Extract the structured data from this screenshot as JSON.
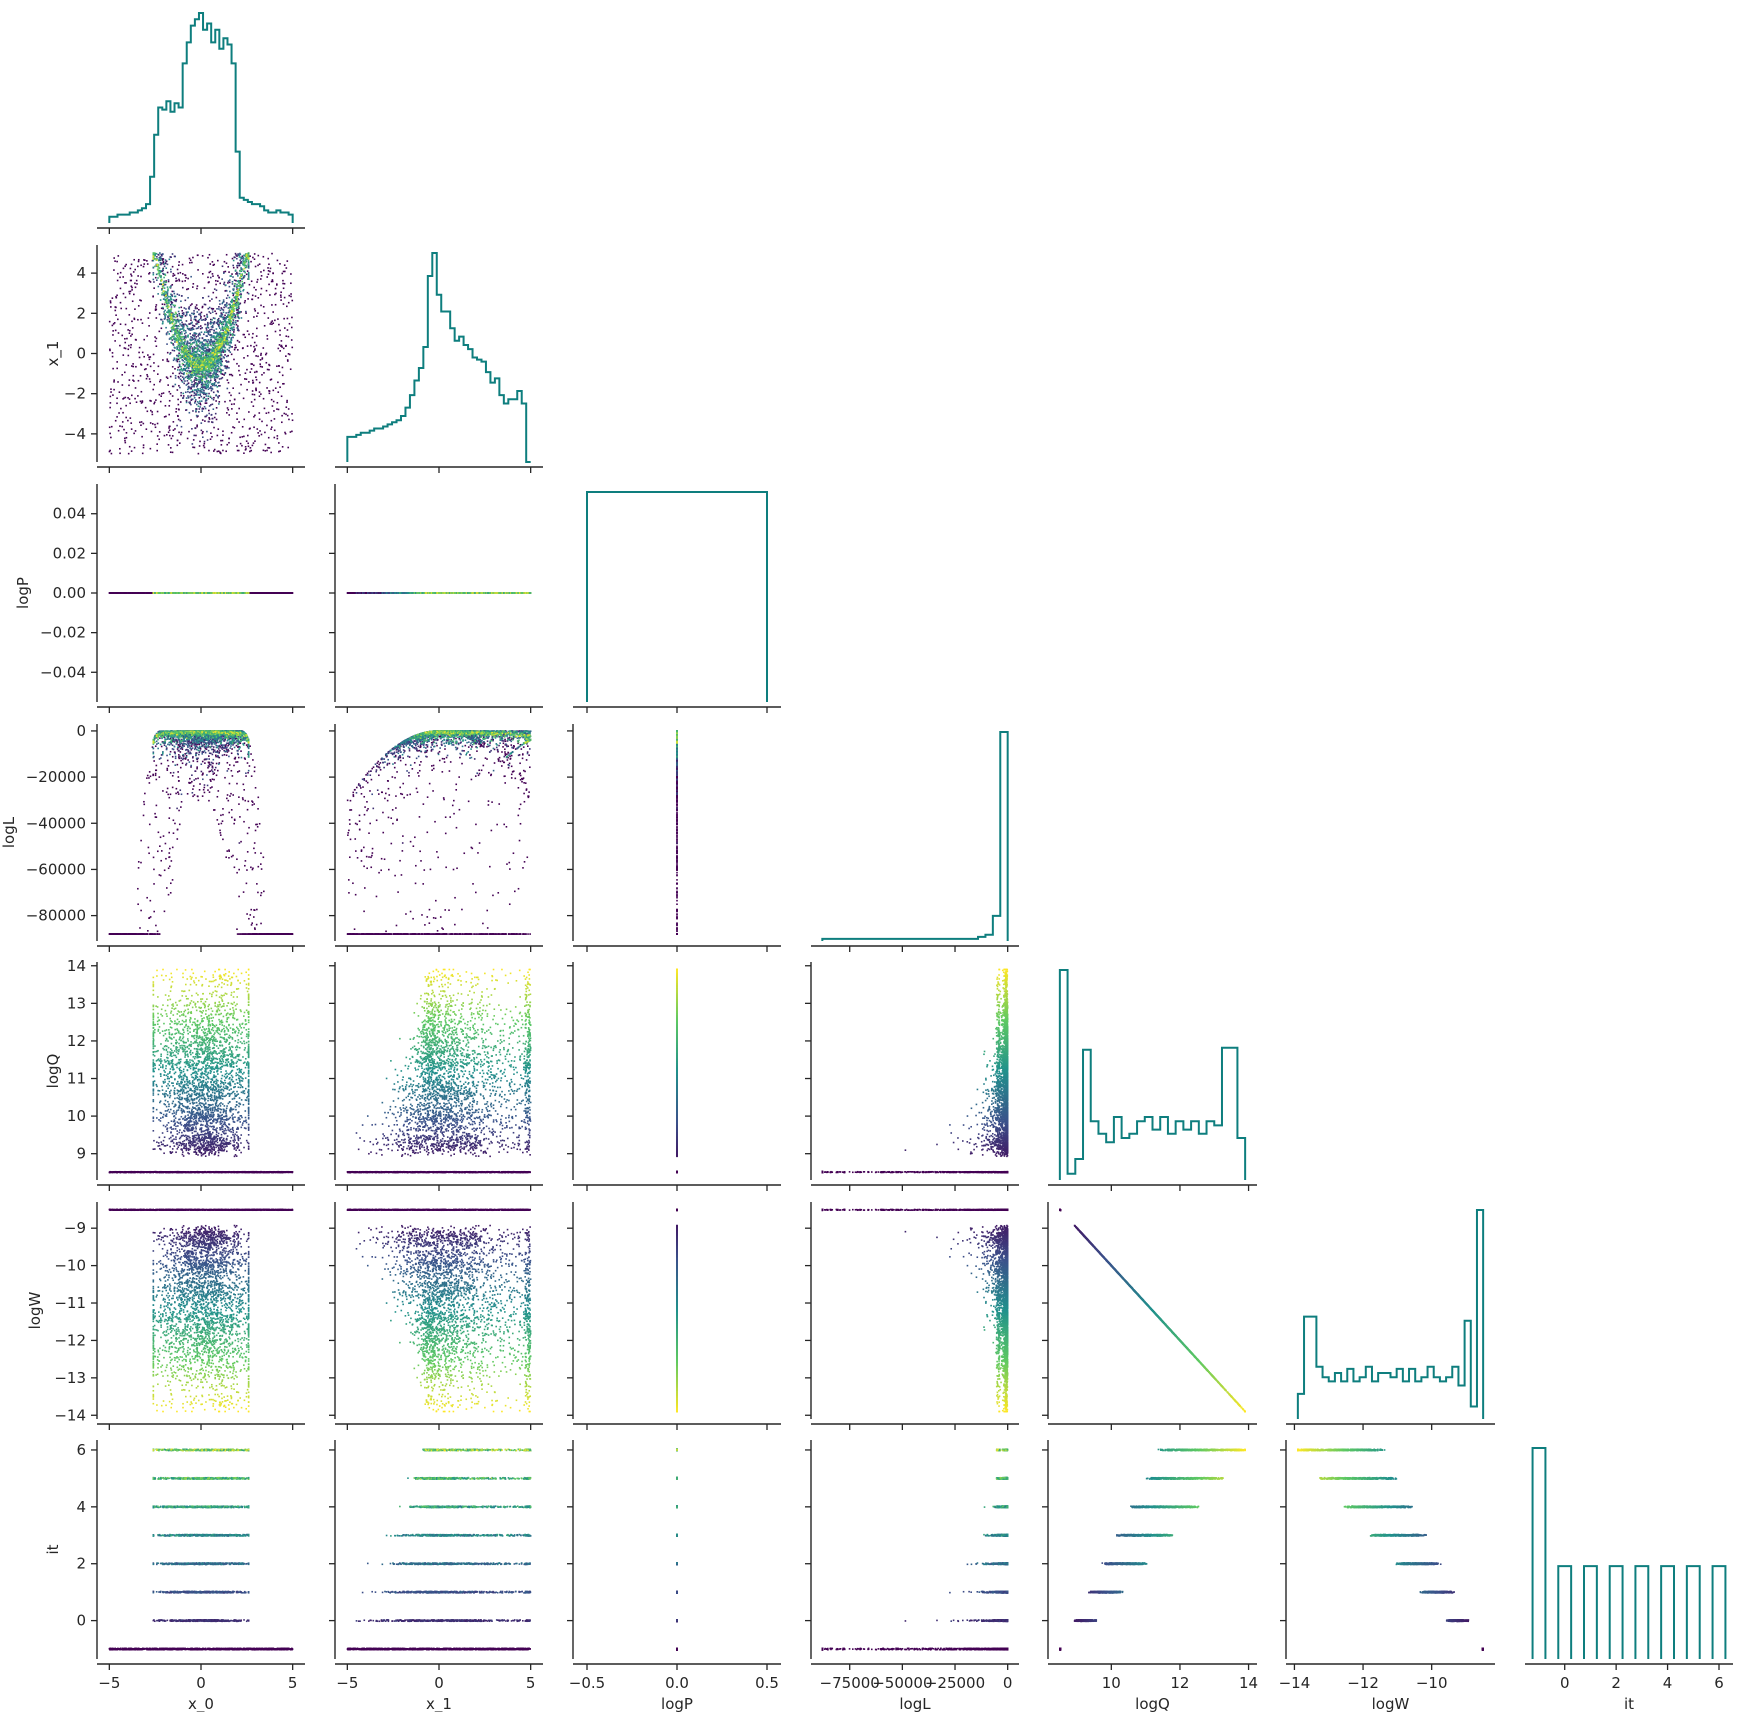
{
  "chart_data": {
    "type": "corner",
    "variables": [
      "x_0",
      "x_1",
      "logP",
      "logL",
      "logQ",
      "logW",
      "it"
    ],
    "xlabels": [
      "x_0",
      "x_1",
      "logP",
      "logL",
      "logQ",
      "logW",
      "it"
    ],
    "ylabels": [
      "",
      "x_1",
      "logP",
      "logL",
      "logQ",
      "logW",
      "it"
    ],
    "colormap": [
      "#440154",
      "#3b528b",
      "#21918c",
      "#5ec962",
      "#fde725"
    ],
    "line_color": "#0e7e7e",
    "axes": {
      "x_0": {
        "lim": [
          -5.4,
          5.4
        ],
        "ticks": [
          -5,
          0,
          5
        ],
        "tick_labels": [
          "−5",
          "0",
          "5"
        ]
      },
      "x_1": {
        "lim": [
          -5.4,
          5.4
        ],
        "ticks": [
          -4,
          -2,
          0,
          2,
          4
        ],
        "tick_labels": [
          "−4",
          "−2",
          "0",
          "2",
          "4"
        ],
        "xticks": [
          -5,
          0,
          5
        ],
        "xtick_labels": [
          "−5",
          "0",
          "5"
        ]
      },
      "logP": {
        "lim": [
          -0.055,
          0.055
        ],
        "ticks": [
          -0.04,
          -0.02,
          0.0,
          0.02,
          0.04
        ],
        "tick_labels": [
          "−0.04",
          "−0.02",
          "0.00",
          "0.02",
          "0.04"
        ],
        "xlim": [
          -0.55,
          0.55
        ],
        "xticks": [
          -0.5,
          0.0,
          0.5
        ],
        "xtick_labels": [
          "−0.5",
          "0.0",
          "0.5"
        ]
      },
      "logL": {
        "lim": [
          -91000,
          3000
        ],
        "ticks": [
          -80000,
          -60000,
          -40000,
          -20000,
          0
        ],
        "tick_labels": [
          "−80000",
          "−60000",
          "−40000",
          "−20000",
          "0"
        ],
        "xticks": [
          -75000,
          -50000,
          -25000,
          0
        ],
        "xtick_labels": [
          "−75000",
          "−50000",
          "−25000",
          "0"
        ]
      },
      "logQ": {
        "lim": [
          8.3,
          14.1
        ],
        "ticks": [
          9,
          10,
          11,
          12,
          13,
          14
        ],
        "tick_labels": [
          "9",
          "10",
          "11",
          "12",
          "13",
          "14"
        ],
        "xticks": [
          10,
          12,
          14
        ],
        "xtick_labels": [
          "10",
          "12",
          "14"
        ]
      },
      "logW": {
        "lim": [
          -14.1,
          -8.3
        ],
        "ticks": [
          -14,
          -13,
          -12,
          -11,
          -10,
          -9
        ],
        "tick_labels": [
          "−14",
          "−13",
          "−12",
          "−11",
          "−10",
          "−9"
        ],
        "xticks": [
          -14,
          -12,
          -10
        ],
        "xtick_labels": [
          "−14",
          "−12",
          "−10"
        ]
      },
      "it": {
        "lim": [
          -1.35,
          6.35
        ],
        "ticks": [
          0,
          2,
          4,
          6
        ],
        "tick_labels": [
          "0",
          "2",
          "4",
          "6"
        ],
        "xticks": [
          0,
          2,
          4,
          6
        ],
        "xtick_labels": [
          "0",
          "2",
          "4",
          "6"
        ]
      }
    },
    "histograms": {
      "x_0": {
        "bins": [
          -5.0,
          5.0
        ],
        "counts": [
          3,
          3,
          4,
          4,
          4,
          5,
          5,
          6,
          7,
          9,
          22,
          42,
          55,
          54,
          58,
          53,
          57,
          55,
          76,
          86,
          94,
          97,
          100,
          92,
          95,
          86,
          92,
          83,
          88,
          85,
          76,
          34,
          12,
          11,
          10,
          9,
          9,
          8,
          6,
          5,
          5,
          6,
          5,
          5,
          4
        ]
      },
      "x_1": {
        "bins": [
          -5.0,
          5.0
        ],
        "counts": [
          12,
          12,
          13,
          14,
          14,
          15,
          16,
          16,
          17,
          18,
          19,
          20,
          22,
          26,
          32,
          39,
          45,
          55,
          89,
          100,
          80,
          72,
          72,
          64,
          58,
          60,
          56,
          54,
          50,
          49,
          48,
          43,
          38,
          40,
          32,
          28,
          30,
          30,
          34,
          28,
          0
        ]
      },
      "logP": {
        "bins": [
          -0.5,
          0.5
        ],
        "counts": [
          100
        ]
      },
      "logL": {
        "bins": [
          -88000,
          0
        ],
        "counts": [
          1,
          1,
          1,
          1,
          1,
          1,
          1,
          1,
          1,
          1,
          1,
          1,
          1,
          1,
          1,
          1,
          1,
          1,
          1,
          1,
          1,
          2,
          3,
          12,
          100
        ]
      },
      "logQ": {
        "bins": [
          8.5,
          13.9
        ],
        "counts": [
          100,
          3,
          10,
          62,
          28,
          22,
          18,
          30,
          20,
          22,
          28,
          30,
          24,
          30,
          22,
          28,
          24,
          28,
          22,
          28,
          26,
          63,
          63,
          20
        ]
      },
      "logW": {
        "bins": [
          -13.9,
          -8.5
        ],
        "counts": [
          12,
          49,
          49,
          25,
          20,
          18,
          22,
          18,
          24,
          18,
          20,
          25,
          18,
          22,
          22,
          20,
          24,
          18,
          24,
          18,
          20,
          25,
          20,
          18,
          20,
          25,
          16,
          47,
          6,
          100
        ]
      },
      "it": {
        "values": [
          -1,
          0,
          1,
          2,
          3,
          4,
          5,
          6
        ],
        "counts": [
          100,
          44,
          44,
          44,
          44,
          44,
          44,
          44
        ]
      }
    }
  }
}
